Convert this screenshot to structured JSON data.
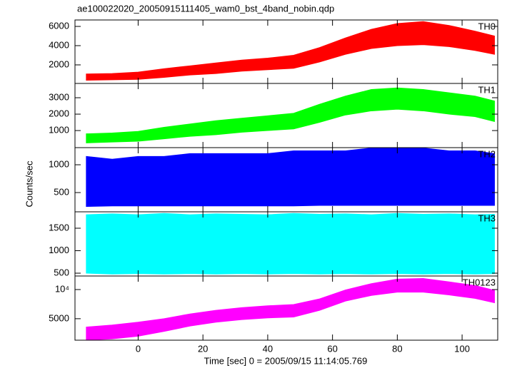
{
  "chart_data": [
    {
      "type": "line",
      "title": "ae100022020_20050915111405_wam0_bst_4band_nobin.qdp",
      "x": [
        -16,
        -8,
        0,
        8,
        16,
        24,
        32,
        40,
        48,
        56,
        64,
        72,
        80,
        88,
        96,
        104,
        110
      ],
      "xlim": [
        -19.5,
        111
      ],
      "xticks": [
        0,
        20,
        40,
        60,
        80,
        100
      ],
      "ylim": [
        70,
        6670
      ],
      "yticks": [
        2000,
        4000,
        6000
      ],
      "series": [
        {
          "name": "TH0",
          "color": "#ff0000",
          "values": [
            700,
            750,
            850,
            1100,
            1400,
            1600,
            1900,
            2100,
            2300,
            3000,
            3900,
            4600,
            5000,
            5100,
            4800,
            4400,
            4000
          ],
          "low": [
            400,
            450,
            500,
            700,
            950,
            1100,
            1350,
            1500,
            1650,
            2300,
            3100,
            3700,
            4000,
            4100,
            3900,
            3500,
            3100
          ],
          "high": [
            1050,
            1100,
            1250,
            1600,
            1900,
            2200,
            2500,
            2700,
            3000,
            3800,
            4800,
            5700,
            6300,
            6500,
            6100,
            5500,
            5000
          ]
        }
      ]
    },
    {
      "type": "line",
      "x": [
        -16,
        -8,
        0,
        8,
        16,
        24,
        32,
        40,
        48,
        56,
        64,
        72,
        80,
        88,
        96,
        104,
        110
      ],
      "xlim": [
        -19.5,
        111
      ],
      "xticks": [
        0,
        20,
        40,
        60,
        80,
        100
      ],
      "ylim": [
        -40,
        3870
      ],
      "yticks": [
        1000,
        2000,
        3000
      ],
      "series": [
        {
          "name": "TH1",
          "color": "#00ff00",
          "values": [
            500,
            550,
            650,
            850,
            1000,
            1150,
            1300,
            1450,
            1550,
            2000,
            2500,
            2800,
            2900,
            2800,
            2600,
            2400,
            2100
          ],
          "low": [
            250,
            300,
            350,
            500,
            650,
            750,
            900,
            1000,
            1100,
            1500,
            1950,
            2200,
            2300,
            2200,
            2000,
            1850,
            1550
          ],
          "high": [
            800,
            850,
            950,
            1200,
            1400,
            1600,
            1750,
            1900,
            2050,
            2600,
            3100,
            3500,
            3600,
            3500,
            3300,
            3100,
            2800
          ]
        }
      ]
    },
    {
      "type": "line",
      "ylabel": "Counts/sec",
      "x": [
        -16,
        -8,
        0,
        8,
        16,
        24,
        32,
        40,
        48,
        56,
        64,
        72,
        80,
        88,
        96,
        104,
        110
      ],
      "xlim": [
        -19.5,
        111
      ],
      "xticks": [
        0,
        20,
        40,
        60,
        80,
        100
      ],
      "ylim": [
        154,
        1308
      ],
      "yticks": [
        500,
        1000
      ],
      "series": [
        {
          "name": "TH2",
          "color": "#0000ff",
          "values": [
            640,
            640,
            650,
            650,
            650,
            650,
            650,
            650,
            650,
            660,
            660,
            670,
            670,
            670,
            660,
            660,
            650
          ],
          "low": [
            250,
            260,
            260,
            260,
            260,
            260,
            260,
            260,
            260,
            270,
            270,
            270,
            270,
            270,
            270,
            270,
            270
          ],
          "high": [
            1150,
            1100,
            1150,
            1150,
            1200,
            1200,
            1200,
            1200,
            1250,
            1250,
            1250,
            1300,
            1300,
            1300,
            1250,
            1250,
            1200
          ]
        }
      ]
    },
    {
      "type": "line",
      "x": [
        -16,
        -8,
        0,
        8,
        16,
        24,
        32,
        40,
        48,
        56,
        64,
        72,
        80,
        88,
        96,
        104,
        110
      ],
      "xlim": [
        -19.5,
        111
      ],
      "xticks": [
        0,
        20,
        40,
        60,
        80,
        100
      ],
      "ylim": [
        437,
        1865
      ],
      "yticks": [
        500,
        1000,
        1500
      ],
      "series": [
        {
          "name": "TH3",
          "color": "#00ffff",
          "values": [
            1150,
            1150,
            1150,
            1150,
            1150,
            1150,
            1150,
            1150,
            1160,
            1160,
            1160,
            1160,
            1160,
            1160,
            1150,
            1150,
            1150
          ],
          "low": [
            500,
            480,
            490,
            480,
            490,
            480,
            490,
            480,
            490,
            480,
            490,
            480,
            490,
            480,
            490,
            480,
            490
          ],
          "high": [
            1800,
            1820,
            1800,
            1830,
            1800,
            1820,
            1810,
            1800,
            1830,
            1810,
            1820,
            1800,
            1830,
            1810,
            1820,
            1800,
            1810
          ]
        }
      ]
    },
    {
      "type": "line",
      "xlabel": "Time [sec] 0 = 2005/09/15 11:14:05.769",
      "log_y": true,
      "x": [
        -16,
        -8,
        0,
        8,
        16,
        24,
        32,
        40,
        48,
        56,
        64,
        72,
        80,
        88,
        96,
        104,
        110
      ],
      "xlim": [
        -19.5,
        111
      ],
      "xticks": [
        0,
        20,
        40,
        60,
        80,
        100
      ],
      "ylim": [
        3000,
        13800
      ],
      "yticks": [
        5000,
        {
          "value": 10000,
          "label": "10⁴"
        }
      ],
      "series": [
        {
          "name": "TH0123",
          "color": "#ff00ff",
          "values": [
            3500,
            3700,
            3900,
            4300,
            4900,
            5300,
            5600,
            5900,
            6000,
            7000,
            8700,
            10000,
            11000,
            11000,
            10300,
            9500,
            8500
          ],
          "low": [
            3000,
            3100,
            3300,
            3700,
            4200,
            4600,
            4900,
            5100,
            5200,
            6100,
            7600,
            8700,
            9400,
            9400,
            8800,
            8100,
            7300
          ],
          "high": [
            4100,
            4300,
            4600,
            5000,
            5600,
            6100,
            6500,
            6800,
            7000,
            8000,
            9900,
            11500,
            12800,
            13000,
            12000,
            11000,
            9800
          ]
        }
      ]
    }
  ]
}
